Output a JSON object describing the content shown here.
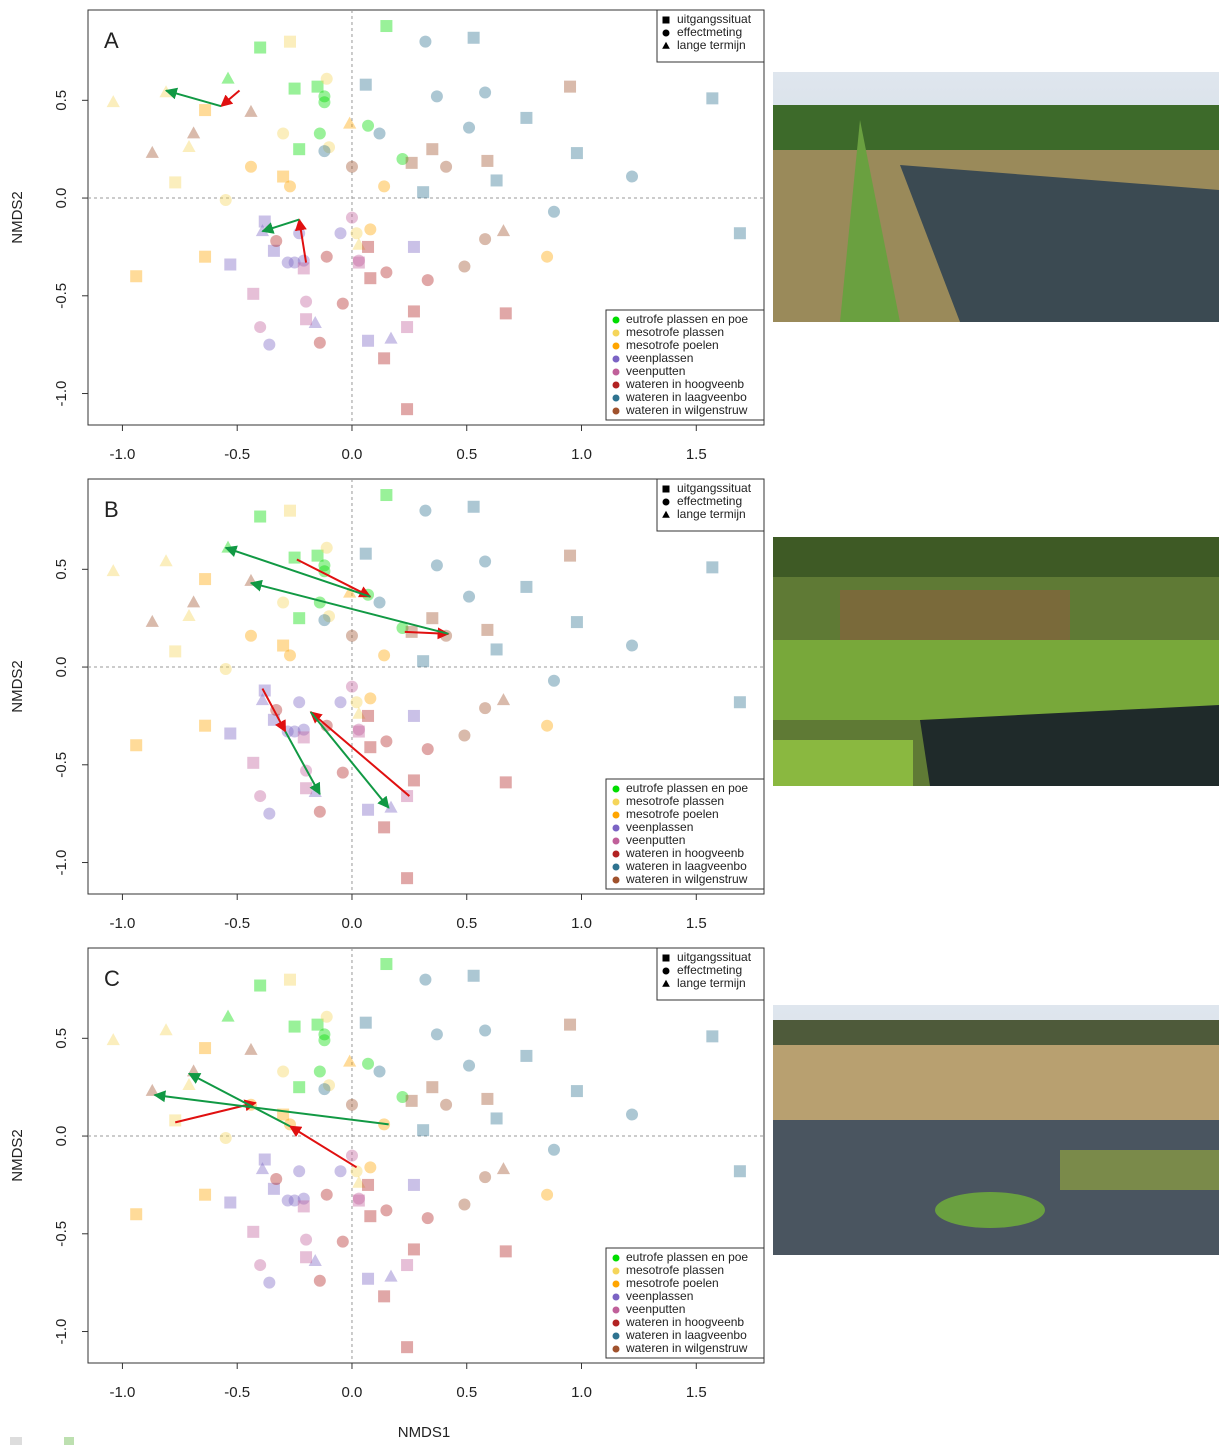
{
  "chart_data": {
    "type": "scatter",
    "x_label": "NMDS1",
    "y_label": "NMDS2",
    "xlim": [
      -1.15,
      1.795
    ],
    "ylim": [
      -1.161,
      0.962
    ],
    "xticks": [
      {
        "value": -1,
        "label": "-1.0"
      },
      -0.5,
      {
        "value": 0,
        "label": "0.0"
      },
      0.5,
      {
        "value": 1,
        "label": "1.0"
      },
      1.5
    ],
    "yticks": [
      {
        "value": -1,
        "label": "-1.0"
      },
      -0.5,
      {
        "value": 0,
        "label": "0.0"
      },
      0.5
    ],
    "zero_lines": true,
    "markers": [
      {
        "shape": "square",
        "label": "uitgangssituat"
      },
      {
        "shape": "circle",
        "label": "effectmeting"
      },
      {
        "shape": "triangle",
        "label": "lange termijn"
      }
    ],
    "series": [
      {
        "name": "eutrofe plassen en poe",
        "color": "#00dd00",
        "x": [
          0.15,
          -0.4,
          -0.25,
          -0.15,
          -0.23,
          -0.54,
          -0.12,
          -0.12,
          -0.14,
          0.07,
          0.22
        ],
        "y": [
          0.88,
          0.77,
          0.56,
          0.57,
          0.25,
          0.61,
          0.52,
          0.49,
          0.33,
          0.37,
          0.2
        ],
        "marker": [
          "square",
          "square",
          "square",
          "square",
          "square",
          "triangle",
          "circle",
          "circle",
          "circle",
          "circle",
          "circle"
        ]
      },
      {
        "name": "mesotrofe plassen",
        "color": "#f5d55a",
        "x": [
          -0.27,
          -0.77,
          -0.11,
          -1.04,
          -0.81,
          -0.71,
          -0.3,
          -0.1,
          0.02,
          0.03,
          -0.55
        ],
        "y": [
          0.8,
          0.08,
          0.61,
          0.49,
          0.54,
          0.26,
          0.33,
          0.26,
          -0.18,
          -0.24,
          -0.01
        ],
        "marker": [
          "square",
          "square",
          "circle",
          "triangle",
          "triangle",
          "triangle",
          "circle",
          "circle",
          "circle",
          "triangle",
          "circle"
        ]
      },
      {
        "name": "mesotrofe poelen",
        "color": "#ffa500",
        "x": [
          -0.64,
          -0.3,
          -0.64,
          -0.94,
          -0.27,
          -0.44,
          0.14,
          0.08,
          0.85,
          -0.01
        ],
        "y": [
          0.45,
          0.11,
          -0.3,
          -0.4,
          0.06,
          0.16,
          0.06,
          -0.16,
          -0.3,
          0.38
        ],
        "marker": [
          "square",
          "square",
          "square",
          "square",
          "circle",
          "circle",
          "circle",
          "circle",
          "circle",
          "triangle"
        ]
      },
      {
        "name": "veenplassen",
        "color": "#7b63c4",
        "x": [
          -0.38,
          -0.34,
          -0.53,
          0.27,
          0.07,
          -0.23,
          -0.05,
          -0.28,
          -0.25,
          -0.36,
          -0.21,
          -0.39,
          -0.16,
          0.17
        ],
        "y": [
          -0.12,
          -0.27,
          -0.34,
          -0.25,
          -0.73,
          -0.18,
          -0.18,
          -0.33,
          -0.33,
          -0.75,
          -0.32,
          -0.17,
          -0.64,
          -0.72
        ],
        "marker": [
          "square",
          "square",
          "square",
          "square",
          "square",
          "circle",
          "circle",
          "circle",
          "circle",
          "circle",
          "circle",
          "triangle",
          "triangle",
          "triangle"
        ]
      },
      {
        "name": "veenputten",
        "color": "#c0609a",
        "x": [
          -0.43,
          -0.21,
          -0.2,
          0.24,
          0.03,
          -0.4,
          -0.2,
          0.0,
          0.03
        ],
        "y": [
          -0.49,
          -0.36,
          -0.62,
          -0.66,
          -0.33,
          -0.66,
          -0.53,
          -0.1,
          -0.32
        ],
        "marker": [
          "square",
          "square",
          "square",
          "square",
          "square",
          "circle",
          "circle",
          "circle",
          "circle"
        ]
      },
      {
        "name": "wateren in hoogveenb",
        "color": "#b22222",
        "x": [
          0.07,
          0.08,
          0.27,
          0.67,
          0.14,
          0.24,
          -0.33,
          -0.11,
          0.15,
          0.33,
          -0.04,
          -0.14
        ],
        "y": [
          -0.25,
          -0.41,
          -0.58,
          -0.59,
          -0.82,
          -1.08,
          -0.22,
          -0.3,
          -0.38,
          -0.42,
          -0.54,
          -0.74
        ],
        "marker": [
          "square",
          "square",
          "square",
          "square",
          "square",
          "square",
          "circle",
          "circle",
          "circle",
          "circle",
          "circle",
          "circle"
        ]
      },
      {
        "name": "wateren in laagveenbo",
        "color": "#2f7390",
        "x": [
          0.53,
          0.06,
          0.76,
          0.98,
          0.63,
          0.31,
          1.57,
          1.69,
          0.32,
          0.37,
          0.58,
          0.51,
          0.12,
          -0.12,
          1.22,
          0.88
        ],
        "y": [
          0.82,
          0.58,
          0.41,
          0.23,
          0.09,
          0.03,
          0.51,
          -0.18,
          0.8,
          0.52,
          0.54,
          0.36,
          0.33,
          0.24,
          0.11,
          -0.07
        ],
        "marker": [
          "square",
          "square",
          "square",
          "square",
          "square",
          "square",
          "square",
          "square",
          "circle",
          "circle",
          "circle",
          "circle",
          "circle",
          "circle",
          "circle",
          "circle"
        ]
      },
      {
        "name": "wateren in wilgenstruw",
        "color": "#a0522d",
        "x": [
          0.95,
          0.35,
          0.59,
          0.26,
          -0.44,
          -0.69,
          -0.87,
          0.66,
          0.0,
          0.41,
          0.58,
          0.49
        ],
        "y": [
          0.57,
          0.25,
          0.19,
          0.18,
          0.44,
          0.33,
          0.23,
          -0.17,
          0.16,
          0.16,
          -0.21,
          -0.35
        ],
        "marker": [
          "square",
          "square",
          "square",
          "square",
          "triangle",
          "triangle",
          "triangle",
          "triangle",
          "circle",
          "circle",
          "circle",
          "circle"
        ]
      }
    ],
    "panels": [
      {
        "label": "A",
        "arrows": [
          {
            "color": "#e01010",
            "x": [
              -0.49,
              -0.57
            ],
            "y": [
              0.55,
              0.47
            ]
          },
          {
            "color": "#119944",
            "x": [
              -0.57,
              -0.81
            ],
            "y": [
              0.47,
              0.55
            ]
          },
          {
            "color": "#e01010",
            "x": [
              -0.2,
              -0.23
            ],
            "y": [
              -0.33,
              -0.11
            ]
          },
          {
            "color": "#119944",
            "x": [
              -0.23,
              -0.39
            ],
            "y": [
              -0.11,
              -0.17
            ]
          }
        ]
      },
      {
        "label": "B",
        "arrows": [
          {
            "color": "#e01010",
            "x": [
              -0.24,
              0.08
            ],
            "y": [
              0.55,
              0.36
            ]
          },
          {
            "color": "#119944",
            "x": [
              0.08,
              -0.55
            ],
            "y": [
              0.36,
              0.61
            ]
          },
          {
            "color": "#e01010",
            "x": [
              0.23,
              0.42
            ],
            "y": [
              0.18,
              0.17
            ]
          },
          {
            "color": "#119944",
            "x": [
              0.42,
              -0.44
            ],
            "y": [
              0.17,
              0.43
            ]
          },
          {
            "color": "#e01010",
            "x": [
              0.25,
              -0.18
            ],
            "y": [
              -0.66,
              -0.23
            ]
          },
          {
            "color": "#119944",
            "x": [
              -0.18,
              0.16
            ],
            "y": [
              -0.23,
              -0.72
            ]
          },
          {
            "color": "#e01010",
            "x": [
              -0.39,
              -0.29
            ],
            "y": [
              -0.11,
              -0.33
            ]
          },
          {
            "color": "#119944",
            "x": [
              -0.29,
              -0.14
            ],
            "y": [
              -0.33,
              -0.65
            ]
          }
        ]
      },
      {
        "label": "C",
        "arrows": [
          {
            "color": "#e01010",
            "x": [
              -0.77,
              -0.42
            ],
            "y": [
              0.07,
              0.17
            ]
          },
          {
            "color": "#119944",
            "x": [
              0.16,
              -0.86
            ],
            "y": [
              0.06,
              0.21
            ]
          },
          {
            "color": "#e01010",
            "x": [
              0.02,
              -0.27
            ],
            "y": [
              -0.16,
              0.05
            ]
          },
          {
            "color": "#119944",
            "x": [
              -0.27,
              -0.71
            ],
            "y": [
              0.05,
              0.32
            ]
          }
        ]
      }
    ]
  }
}
